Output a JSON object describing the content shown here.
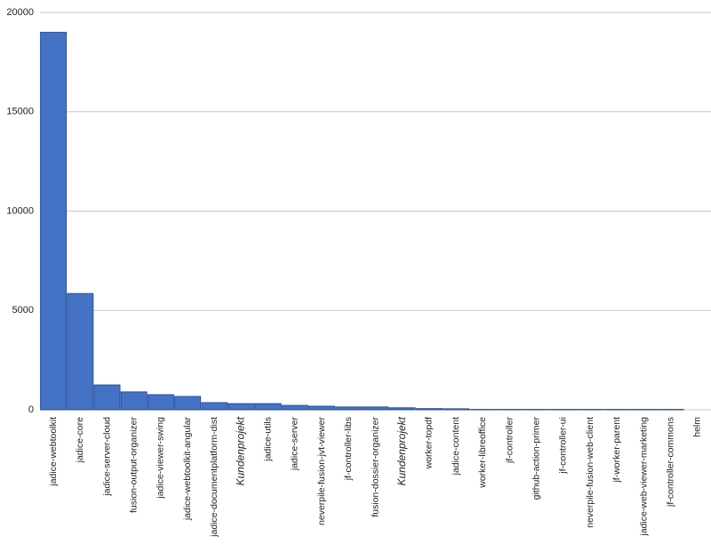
{
  "chart_data": {
    "type": "bar",
    "categories": [
      "jadice-webtoolkit",
      "jadice-core",
      "jadice-server-cloud",
      "fusion-output-organizer",
      "jadice-viewer-swing",
      "jadice-webtoolkit-angular",
      "jadice-documentplatform-dist",
      "Kundenprojekt",
      "jadice-utils",
      "jadice-server",
      "neverpile-fusion-jvt-viewer",
      "jf-controller-libs",
      "fusion-dossier-organizer",
      "Kundenprojekt",
      "worker-topdf",
      "jadice-content",
      "worker-libreoffice",
      "jf-controller",
      "github-action-primer",
      "jf-controller-ui",
      "neverpile-fusion-web-client",
      "jf-worker-parent",
      "jadice-web-viewer-marketing",
      "jf-controller-commons",
      "helm"
    ],
    "values": [
      19000,
      5850,
      1250,
      900,
      760,
      670,
      360,
      310,
      310,
      220,
      180,
      140,
      140,
      100,
      60,
      50,
      20,
      20,
      20,
      20,
      20,
      20,
      20,
      20,
      0
    ],
    "color": "#4472c4",
    "ylim": [
      0,
      20000
    ],
    "yticks": [
      0,
      5000,
      10000,
      15000,
      20000
    ],
    "grid": true
  }
}
